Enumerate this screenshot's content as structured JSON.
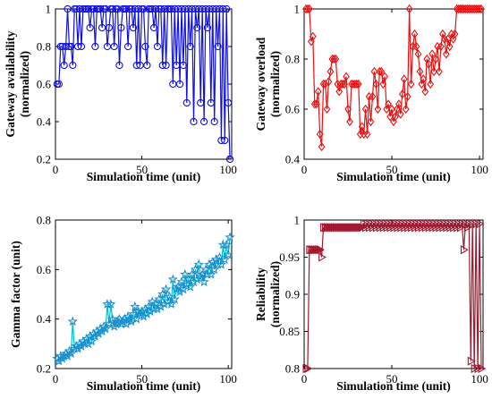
{
  "chart_data": [
    {
      "id": "availability",
      "type": "line",
      "marker": "circle",
      "color": "#1010e0",
      "xlabel": "Simulation time (unit)",
      "ylabel_lines": [
        "Gateway availability",
        "(normalized)"
      ],
      "xlim": [
        0,
        102
      ],
      "ylim": [
        0.2,
        1.0
      ],
      "xticks": [
        0,
        50,
        100
      ],
      "yticks": [
        0.2,
        0.4,
        0.6,
        0.8,
        1.0
      ],
      "ytick_labels": [
        "0.2",
        "0.4",
        "0.6",
        "0.8",
        "1"
      ],
      "x": [
        1,
        2,
        3,
        4,
        5,
        6,
        7,
        8,
        9,
        10,
        11,
        12,
        13,
        14,
        15,
        16,
        17,
        18,
        19,
        20,
        21,
        22,
        23,
        24,
        25,
        26,
        27,
        28,
        29,
        30,
        31,
        32,
        33,
        34,
        35,
        36,
        37,
        38,
        39,
        40,
        41,
        42,
        43,
        44,
        45,
        46,
        47,
        48,
        49,
        50,
        51,
        52,
        53,
        54,
        55,
        56,
        57,
        58,
        59,
        60,
        61,
        62,
        63,
        64,
        65,
        66,
        67,
        68,
        69,
        70,
        71,
        72,
        73,
        74,
        75,
        76,
        77,
        78,
        79,
        80,
        81,
        82,
        83,
        84,
        85,
        86,
        87,
        88,
        89,
        90,
        91,
        92,
        93,
        94,
        95,
        96,
        97,
        98,
        99,
        100,
        101
      ],
      "y": [
        0.6,
        0.6,
        0.8,
        0.8,
        0.7,
        0.8,
        1.0,
        0.8,
        0.8,
        0.7,
        1.0,
        1.0,
        0.8,
        1.0,
        0.8,
        1.0,
        1.0,
        1.0,
        1.0,
        0.9,
        1.0,
        1.0,
        0.8,
        1.0,
        1.0,
        1.0,
        0.9,
        1.0,
        1.0,
        0.8,
        0.9,
        1.0,
        1.0,
        0.8,
        1.0,
        1.0,
        0.7,
        0.9,
        1.0,
        1.0,
        1.0,
        0.8,
        1.0,
        1.0,
        0.9,
        1.0,
        0.7,
        1.0,
        0.7,
        1.0,
        1.0,
        0.8,
        0.7,
        1.0,
        1.0,
        1.0,
        0.9,
        1.0,
        0.8,
        1.0,
        1.0,
        0.7,
        1.0,
        0.7,
        1.0,
        1.0,
        1.0,
        0.6,
        1.0,
        0.7,
        1.0,
        0.6,
        1.0,
        0.7,
        1.0,
        0.5,
        1.0,
        0.8,
        1.0,
        0.4,
        1.0,
        0.9,
        1.0,
        0.5,
        1.0,
        0.4,
        1.0,
        0.9,
        1.0,
        0.5,
        1.0,
        0.4,
        1.0,
        0.8,
        1.0,
        0.3,
        1.0,
        0.3,
        1.0,
        0.5,
        0.2
      ]
    },
    {
      "id": "overload",
      "type": "line",
      "marker": "diamond",
      "color": "#e81010",
      "xlabel": "Simulation time (unit)",
      "ylabel_lines": [
        "Gateway overload",
        "(normalized)"
      ],
      "xlim": [
        0,
        102
      ],
      "ylim": [
        0.4,
        1.0
      ],
      "xticks": [
        0,
        50,
        100
      ],
      "yticks": [
        0.4,
        0.6,
        0.8,
        1.0
      ],
      "ytick_labels": [
        "0.4",
        "0.6",
        "0.8",
        "1"
      ],
      "x": [
        1,
        2,
        3,
        4,
        5,
        6,
        7,
        8,
        9,
        10,
        11,
        12,
        13,
        14,
        15,
        16,
        17,
        18,
        19,
        20,
        21,
        22,
        23,
        24,
        25,
        26,
        27,
        28,
        29,
        30,
        31,
        32,
        33,
        34,
        35,
        36,
        37,
        38,
        39,
        40,
        41,
        42,
        43,
        44,
        45,
        46,
        47,
        48,
        49,
        50,
        51,
        52,
        53,
        54,
        55,
        56,
        57,
        58,
        59,
        60,
        61,
        62,
        63,
        64,
        65,
        66,
        67,
        68,
        69,
        70,
        71,
        72,
        73,
        74,
        75,
        76,
        77,
        78,
        79,
        80,
        81,
        82,
        83,
        84,
        85,
        86,
        87,
        88,
        89,
        90,
        91,
        92,
        93,
        94,
        95,
        96,
        97,
        98,
        99,
        100,
        101
      ],
      "y": [
        1.0,
        1.0,
        1.0,
        0.87,
        0.89,
        0.62,
        0.62,
        0.67,
        0.5,
        0.45,
        0.7,
        0.7,
        0.6,
        0.71,
        0.75,
        0.8,
        0.8,
        0.8,
        0.7,
        0.67,
        0.7,
        0.7,
        0.7,
        0.73,
        0.6,
        0.55,
        0.7,
        0.7,
        0.7,
        0.7,
        0.7,
        0.5,
        0.53,
        0.5,
        0.6,
        0.5,
        0.65,
        0.55,
        0.65,
        0.75,
        0.7,
        0.6,
        0.75,
        0.75,
        0.7,
        0.73,
        0.6,
        0.62,
        0.57,
        0.6,
        0.55,
        0.57,
        0.6,
        0.62,
        0.58,
        0.66,
        0.72,
        0.6,
        0.65,
        1.0,
        0.7,
        0.85,
        0.9,
        0.85,
        0.82,
        0.75,
        0.7,
        0.72,
        0.67,
        0.8,
        0.78,
        0.7,
        0.82,
        0.75,
        0.8,
        0.85,
        0.75,
        0.85,
        0.9,
        0.88,
        0.82,
        0.88,
        0.85,
        0.9,
        0.88,
        0.9,
        1.0,
        1.0,
        1.0,
        1.0,
        1.0,
        1.0,
        1.0,
        1.0,
        1.0,
        1.0,
        1.0,
        1.0,
        1.0,
        1.0,
        1.0
      ]
    },
    {
      "id": "gamma",
      "type": "line",
      "marker": "star",
      "color": "#1a8fd0",
      "line_color": "#00c0c8",
      "xlabel": "Simulation time (unit)",
      "ylabel_lines": [
        "Gamma factor (unit)"
      ],
      "xlim": [
        0,
        102
      ],
      "ylim": [
        0.2,
        0.8
      ],
      "xticks": [
        0,
        50,
        100
      ],
      "yticks": [
        0.2,
        0.4,
        0.6,
        0.8
      ],
      "ytick_labels": [
        "0.2",
        "0.4",
        "0.6",
        "0.8"
      ],
      "x": [
        1,
        2,
        3,
        4,
        5,
        6,
        7,
        8,
        9,
        10,
        11,
        12,
        13,
        14,
        15,
        16,
        17,
        18,
        19,
        20,
        21,
        22,
        23,
        24,
        25,
        26,
        27,
        28,
        29,
        30,
        31,
        32,
        33,
        34,
        35,
        36,
        37,
        38,
        39,
        40,
        41,
        42,
        43,
        44,
        45,
        46,
        47,
        48,
        49,
        50,
        51,
        52,
        53,
        54,
        55,
        56,
        57,
        58,
        59,
        60,
        61,
        62,
        63,
        64,
        65,
        66,
        67,
        68,
        69,
        70,
        71,
        72,
        73,
        74,
        75,
        76,
        77,
        78,
        79,
        80,
        81,
        82,
        83,
        84,
        85,
        86,
        87,
        88,
        89,
        90,
        91,
        92,
        93,
        94,
        95,
        96,
        97,
        98,
        99,
        100,
        101
      ],
      "y": [
        0.24,
        0.23,
        0.25,
        0.24,
        0.25,
        0.26,
        0.25,
        0.27,
        0.26,
        0.39,
        0.28,
        0.29,
        0.28,
        0.3,
        0.29,
        0.31,
        0.3,
        0.32,
        0.3,
        0.33,
        0.31,
        0.34,
        0.33,
        0.35,
        0.34,
        0.36,
        0.35,
        0.37,
        0.36,
        0.46,
        0.38,
        0.46,
        0.4,
        0.37,
        0.38,
        0.39,
        0.4,
        0.38,
        0.39,
        0.4,
        0.38,
        0.41,
        0.4,
        0.39,
        0.42,
        0.45,
        0.4,
        0.43,
        0.42,
        0.43,
        0.41,
        0.44,
        0.42,
        0.45,
        0.43,
        0.47,
        0.44,
        0.46,
        0.44,
        0.48,
        0.45,
        0.5,
        0.46,
        0.52,
        0.47,
        0.49,
        0.46,
        0.56,
        0.48,
        0.52,
        0.53,
        0.51,
        0.55,
        0.52,
        0.58,
        0.54,
        0.56,
        0.53,
        0.58,
        0.55,
        0.6,
        0.56,
        0.62,
        0.57,
        0.58,
        0.55,
        0.6,
        0.58,
        0.62,
        0.58,
        0.63,
        0.6,
        0.64,
        0.62,
        0.65,
        0.62,
        0.7,
        0.64,
        0.7,
        0.66,
        0.73
      ]
    },
    {
      "id": "reliability",
      "type": "line",
      "marker": "triangle-right",
      "color": "#a01830",
      "xlabel": "Simulation time (unit)",
      "ylabel_lines": [
        "Reliability",
        "(normalized)"
      ],
      "xlim": [
        0,
        102
      ],
      "ylim": [
        0.8,
        1.0
      ],
      "xticks": [
        0,
        50,
        100
      ],
      "yticks": [
        0.8,
        0.85,
        0.9,
        0.95,
        1.0
      ],
      "ytick_labels": [
        "0.8",
        "0.85",
        "0.9",
        "0.95",
        "1"
      ],
      "x": [
        1,
        2,
        3,
        4,
        5,
        6,
        7,
        8,
        9,
        10,
        11,
        12,
        13,
        14,
        15,
        16,
        17,
        18,
        19,
        20,
        21,
        22,
        23,
        24,
        25,
        26,
        27,
        28,
        29,
        30,
        31,
        32,
        33,
        34,
        35,
        36,
        37,
        38,
        39,
        40,
        41,
        42,
        43,
        44,
        45,
        46,
        47,
        48,
        49,
        50,
        51,
        52,
        53,
        54,
        55,
        56,
        57,
        58,
        59,
        60,
        61,
        62,
        63,
        64,
        65,
        66,
        67,
        68,
        69,
        70,
        71,
        72,
        73,
        74,
        75,
        76,
        77,
        78,
        79,
        80,
        81,
        82,
        83,
        84,
        85,
        86,
        87,
        88,
        89,
        90,
        91,
        92,
        93,
        94,
        95,
        96,
        97,
        98,
        99,
        100,
        101
      ],
      "y": [
        0.8,
        0.8,
        0.96,
        0.96,
        0.96,
        0.96,
        0.96,
        0.96,
        0.96,
        0.95,
        0.99,
        0.99,
        0.99,
        0.99,
        0.99,
        0.99,
        0.99,
        0.99,
        0.99,
        0.99,
        0.99,
        0.99,
        0.99,
        0.99,
        0.99,
        0.99,
        0.99,
        0.99,
        0.99,
        0.99,
        0.99,
        0.99,
        0.99,
        0.995,
        0.99,
        0.995,
        0.99,
        0.995,
        0.99,
        0.995,
        0.99,
        0.995,
        0.99,
        0.995,
        0.99,
        0.995,
        0.99,
        0.995,
        0.99,
        0.995,
        0.99,
        0.995,
        0.99,
        0.995,
        0.99,
        0.995,
        0.99,
        0.995,
        0.99,
        0.995,
        0.99,
        0.995,
        0.99,
        0.995,
        0.99,
        0.995,
        0.99,
        0.995,
        0.99,
        0.995,
        0.99,
        0.995,
        0.99,
        0.995,
        0.99,
        0.995,
        0.99,
        0.995,
        0.99,
        0.995,
        0.99,
        0.995,
        0.99,
        0.995,
        0.99,
        0.995,
        0.99,
        0.995,
        0.99,
        0.995,
        0.96,
        0.995,
        0.99,
        0.995,
        0.81,
        0.995,
        0.8,
        0.995,
        0.8,
        0.995,
        0.8
      ]
    }
  ]
}
